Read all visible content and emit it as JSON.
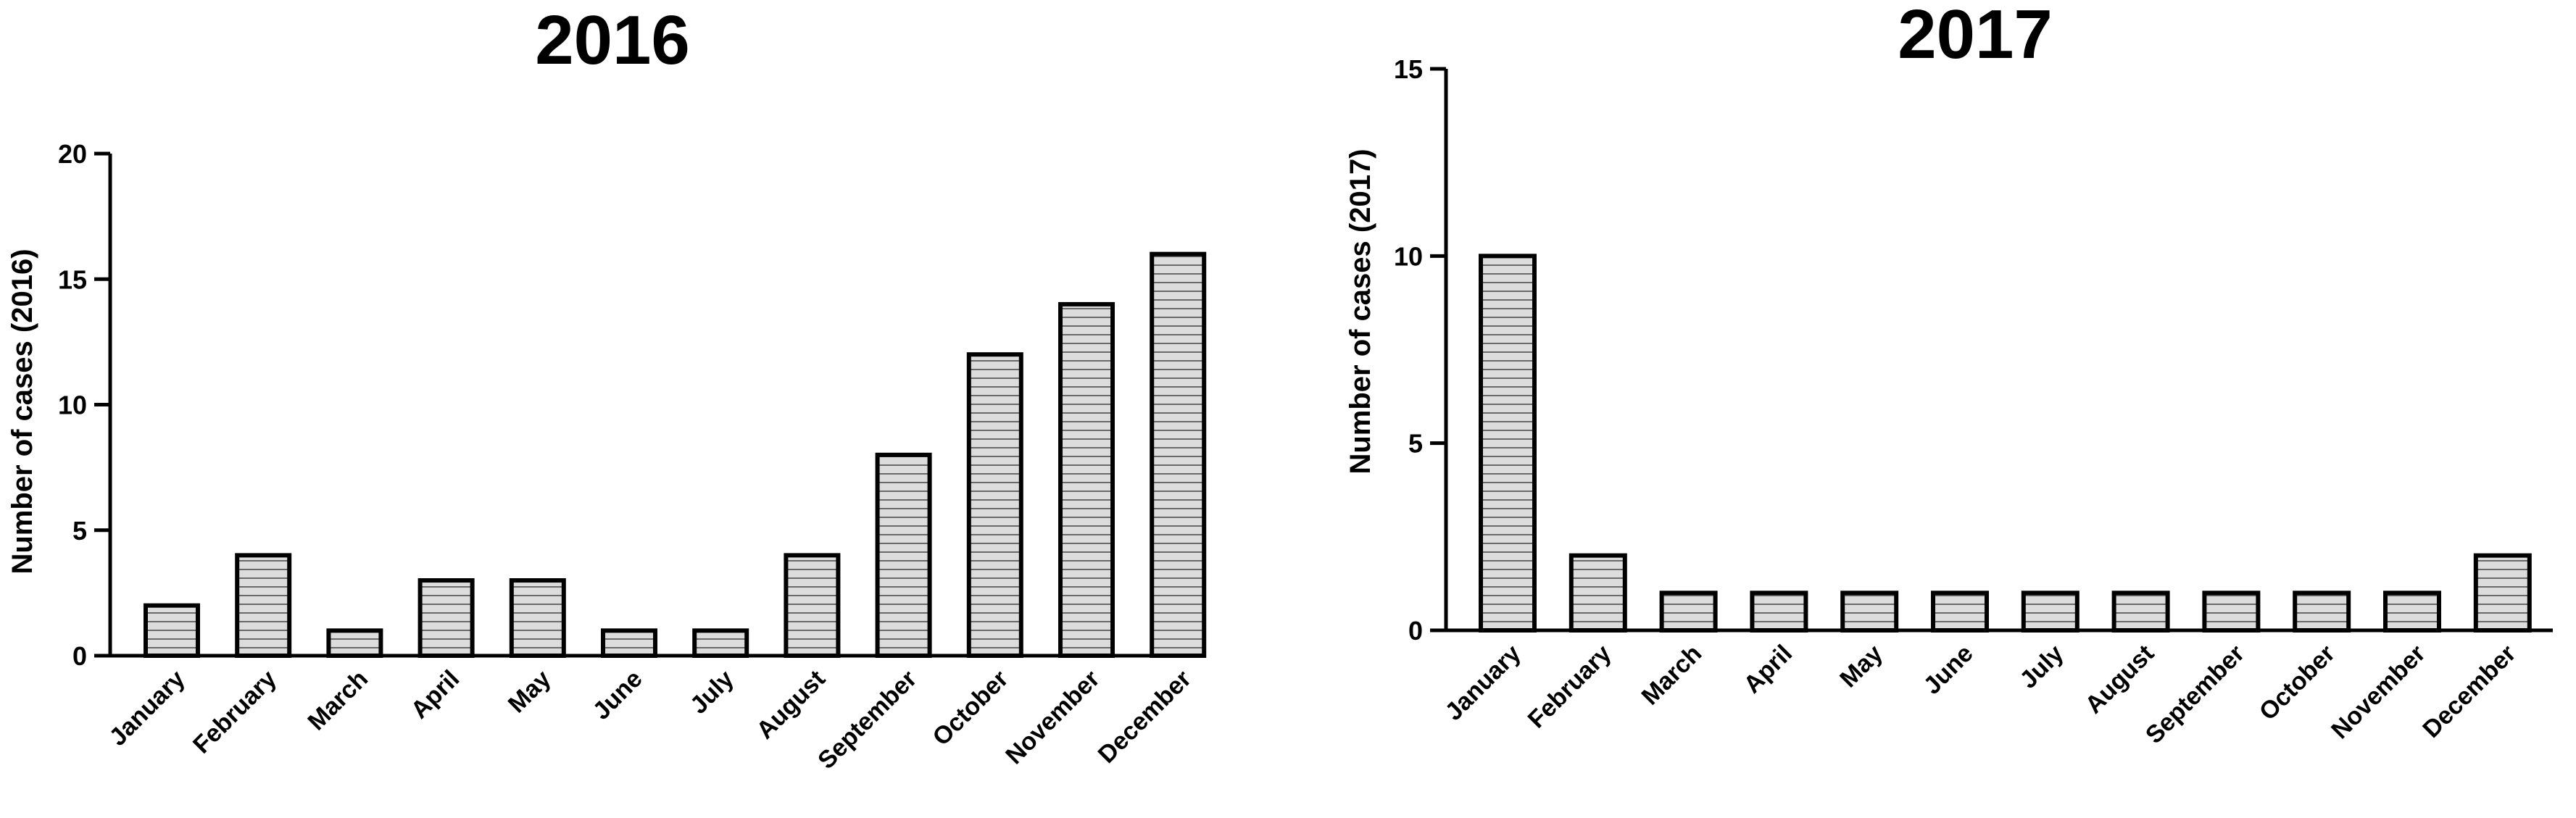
{
  "chart_data": [
    {
      "type": "bar",
      "title": "2016",
      "ylabel": "Number of cases (2016)",
      "xlabel": "",
      "categories": [
        "January",
        "February",
        "March",
        "April",
        "May",
        "June",
        "July",
        "August",
        "September",
        "October",
        "November",
        "December"
      ],
      "values": [
        2,
        4,
        1,
        3,
        3,
        1,
        1,
        4,
        8,
        12,
        14,
        16
      ],
      "ylim": [
        0,
        20
      ],
      "yticks": [
        0,
        5,
        10,
        15,
        20
      ],
      "grid": false,
      "bar_fill": "#dcdcdc",
      "bar_stroke": "#000000",
      "bar_pattern": "horizontal-lines"
    },
    {
      "type": "bar",
      "title": "2017",
      "ylabel": "Number of cases (2017)",
      "xlabel": "",
      "categories": [
        "January",
        "February",
        "March",
        "April",
        "May",
        "June",
        "July",
        "August",
        "September",
        "October",
        "November",
        "December"
      ],
      "values": [
        10,
        2,
        1,
        1,
        1,
        1,
        1,
        1,
        1,
        1,
        1,
        2
      ],
      "ylim": [
        0,
        15
      ],
      "yticks": [
        0,
        5,
        10,
        15
      ],
      "grid": false,
      "bar_fill": "#dcdcdc",
      "bar_stroke": "#000000",
      "bar_pattern": "horizontal-lines"
    }
  ]
}
